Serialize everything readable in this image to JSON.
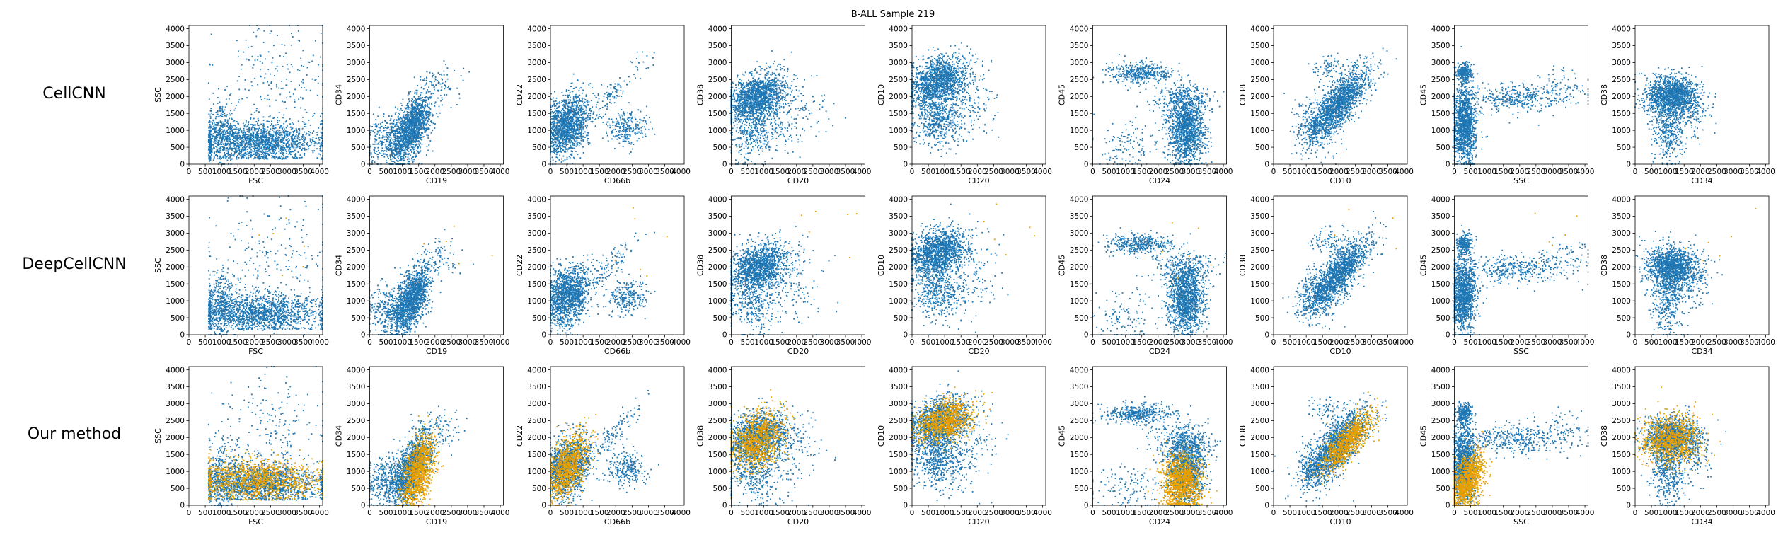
{
  "chart_data": {
    "type": "scatter",
    "title": "B-ALL Sample 219",
    "xlim": [
      0,
      4096
    ],
    "ylim": [
      0,
      4096
    ],
    "ticks": [
      0,
      500,
      1000,
      1500,
      2000,
      2500,
      3000,
      3500,
      4000
    ],
    "colors": {
      "all_cells": "#1f77b4",
      "selected_cells": "#e8a000"
    },
    "rows": [
      "CellCNN",
      "DeepCellCNN",
      "Our method"
    ],
    "panels": [
      {
        "xlabel": "FSC",
        "ylabel": "SSC",
        "clusters": [
          {
            "cx": 2100,
            "cy": 650,
            "sx": 1000,
            "sy": 280,
            "n": 1600,
            "xmin": 600,
            "xmax": 4096,
            "ymin": 150
          },
          {
            "cx": 2600,
            "cy": 2300,
            "sx": 900,
            "sy": 900,
            "n": 220,
            "xmin": 600
          },
          {
            "cx": 1000,
            "cy": 900,
            "sx": 250,
            "sy": 500,
            "n": 300,
            "xmin": 600
          }
        ],
        "selected": [
          {
            "cx": 2100,
            "cy": 750,
            "sx": 1000,
            "sy": 300,
            "n": 1100,
            "xmin": 600,
            "ymin": 150
          }
        ]
      },
      {
        "xlabel": "CD19",
        "ylabel": "CD34",
        "clusters": [
          {
            "cx": 1300,
            "cy": 1100,
            "sx": 300,
            "sy": 500,
            "n": 1400,
            "rho": 0.55
          },
          {
            "cx": 600,
            "cy": 700,
            "sx": 400,
            "sy": 350,
            "n": 400
          },
          {
            "cx": 2200,
            "cy": 2300,
            "sx": 300,
            "sy": 300,
            "n": 80
          }
        ],
        "selected": [
          {
            "cx": 1500,
            "cy": 1000,
            "sx": 250,
            "sy": 550,
            "n": 1000,
            "rho": 0.5
          }
        ]
      },
      {
        "xlabel": "CD66b",
        "ylabel": "CD22",
        "clusters": [
          {
            "cx": 500,
            "cy": 1150,
            "sx": 350,
            "sy": 450,
            "n": 1400,
            "rho": 0.3
          },
          {
            "cx": 2350,
            "cy": 1100,
            "sx": 300,
            "sy": 250,
            "n": 250
          },
          {
            "cx": 1800,
            "cy": 2000,
            "sx": 500,
            "sy": 500,
            "n": 120,
            "rho": 0.9
          }
        ],
        "selected": [
          {
            "cx": 550,
            "cy": 1200,
            "sx": 300,
            "sy": 500,
            "n": 900,
            "rho": 0.5
          }
        ]
      },
      {
        "xlabel": "CD20",
        "ylabel": "CD38",
        "clusters": [
          {
            "cx": 800,
            "cy": 2000,
            "sx": 450,
            "sy": 350,
            "n": 1400,
            "rho": 0.3
          },
          {
            "cx": 700,
            "cy": 1000,
            "sx": 400,
            "sy": 500,
            "n": 400
          },
          {
            "cx": 1900,
            "cy": 1500,
            "sx": 500,
            "sy": 600,
            "n": 150
          }
        ],
        "selected": [
          {
            "cx": 800,
            "cy": 1900,
            "sx": 400,
            "sy": 450,
            "n": 900,
            "rho": 0.3
          }
        ]
      },
      {
        "xlabel": "CD20",
        "ylabel": "CD10",
        "clusters": [
          {
            "cx": 800,
            "cy": 2450,
            "sx": 450,
            "sy": 350,
            "n": 1400,
            "rho": 0.3
          },
          {
            "cx": 800,
            "cy": 1300,
            "sx": 400,
            "sy": 400,
            "n": 500
          },
          {
            "cx": 1700,
            "cy": 1800,
            "sx": 500,
            "sy": 600,
            "n": 150
          }
        ],
        "selected": [
          {
            "cx": 1000,
            "cy": 2500,
            "sx": 450,
            "sy": 300,
            "n": 900,
            "rho": 0.3
          }
        ]
      },
      {
        "xlabel": "CD24",
        "ylabel": "CD45",
        "clusters": [
          {
            "cx": 2850,
            "cy": 1000,
            "sx": 280,
            "sy": 500,
            "n": 1300
          },
          {
            "cx": 1400,
            "cy": 2700,
            "sx": 500,
            "sy": 150,
            "n": 400
          },
          {
            "cx": 2800,
            "cy": 1900,
            "sx": 500,
            "sy": 250,
            "n": 300
          },
          {
            "cx": 1000,
            "cy": 500,
            "sx": 500,
            "sy": 400,
            "n": 120
          }
        ],
        "selected": [
          {
            "cx": 2750,
            "cy": 650,
            "sx": 300,
            "sy": 450,
            "n": 1100,
            "ymin": 0
          }
        ]
      },
      {
        "xlabel": "CD10",
        "ylabel": "CD38",
        "clusters": [
          {
            "cx": 2000,
            "cy": 1800,
            "sx": 450,
            "sy": 500,
            "n": 1500,
            "rho": 0.75
          },
          {
            "cx": 1300,
            "cy": 1100,
            "sx": 350,
            "sy": 350,
            "n": 300
          },
          {
            "cx": 1700,
            "cy": 2800,
            "sx": 300,
            "sy": 200,
            "n": 80
          }
        ],
        "selected": [
          {
            "cx": 2300,
            "cy": 1900,
            "sx": 400,
            "sy": 450,
            "n": 900,
            "rho": 0.8
          }
        ]
      },
      {
        "xlabel": "SSC",
        "ylabel": "CD45",
        "clusters": [
          {
            "cx": 300,
            "cy": 1200,
            "sx": 180,
            "sy": 550,
            "n": 1300
          },
          {
            "cx": 300,
            "cy": 2700,
            "sx": 120,
            "sy": 150,
            "n": 250
          },
          {
            "cx": 1800,
            "cy": 1950,
            "sx": 700,
            "sy": 200,
            "n": 350
          },
          {
            "cx": 3300,
            "cy": 2200,
            "sx": 500,
            "sy": 300,
            "n": 100
          }
        ],
        "selected": [
          {
            "cx": 400,
            "cy": 700,
            "sx": 250,
            "sy": 450,
            "n": 1100,
            "rho": 0.4
          }
        ]
      },
      {
        "xlabel": "CD34",
        "ylabel": "CD38",
        "clusters": [
          {
            "cx": 1150,
            "cy": 2000,
            "sx": 400,
            "sy": 300,
            "n": 1400
          },
          {
            "cx": 1000,
            "cy": 1000,
            "sx": 250,
            "sy": 500,
            "n": 400
          },
          {
            "cx": 1800,
            "cy": 1500,
            "sx": 300,
            "sy": 400,
            "n": 100
          }
        ],
        "selected": [
          {
            "cx": 1100,
            "cy": 1950,
            "sx": 450,
            "sy": 350,
            "n": 900
          }
        ]
      }
    ]
  }
}
